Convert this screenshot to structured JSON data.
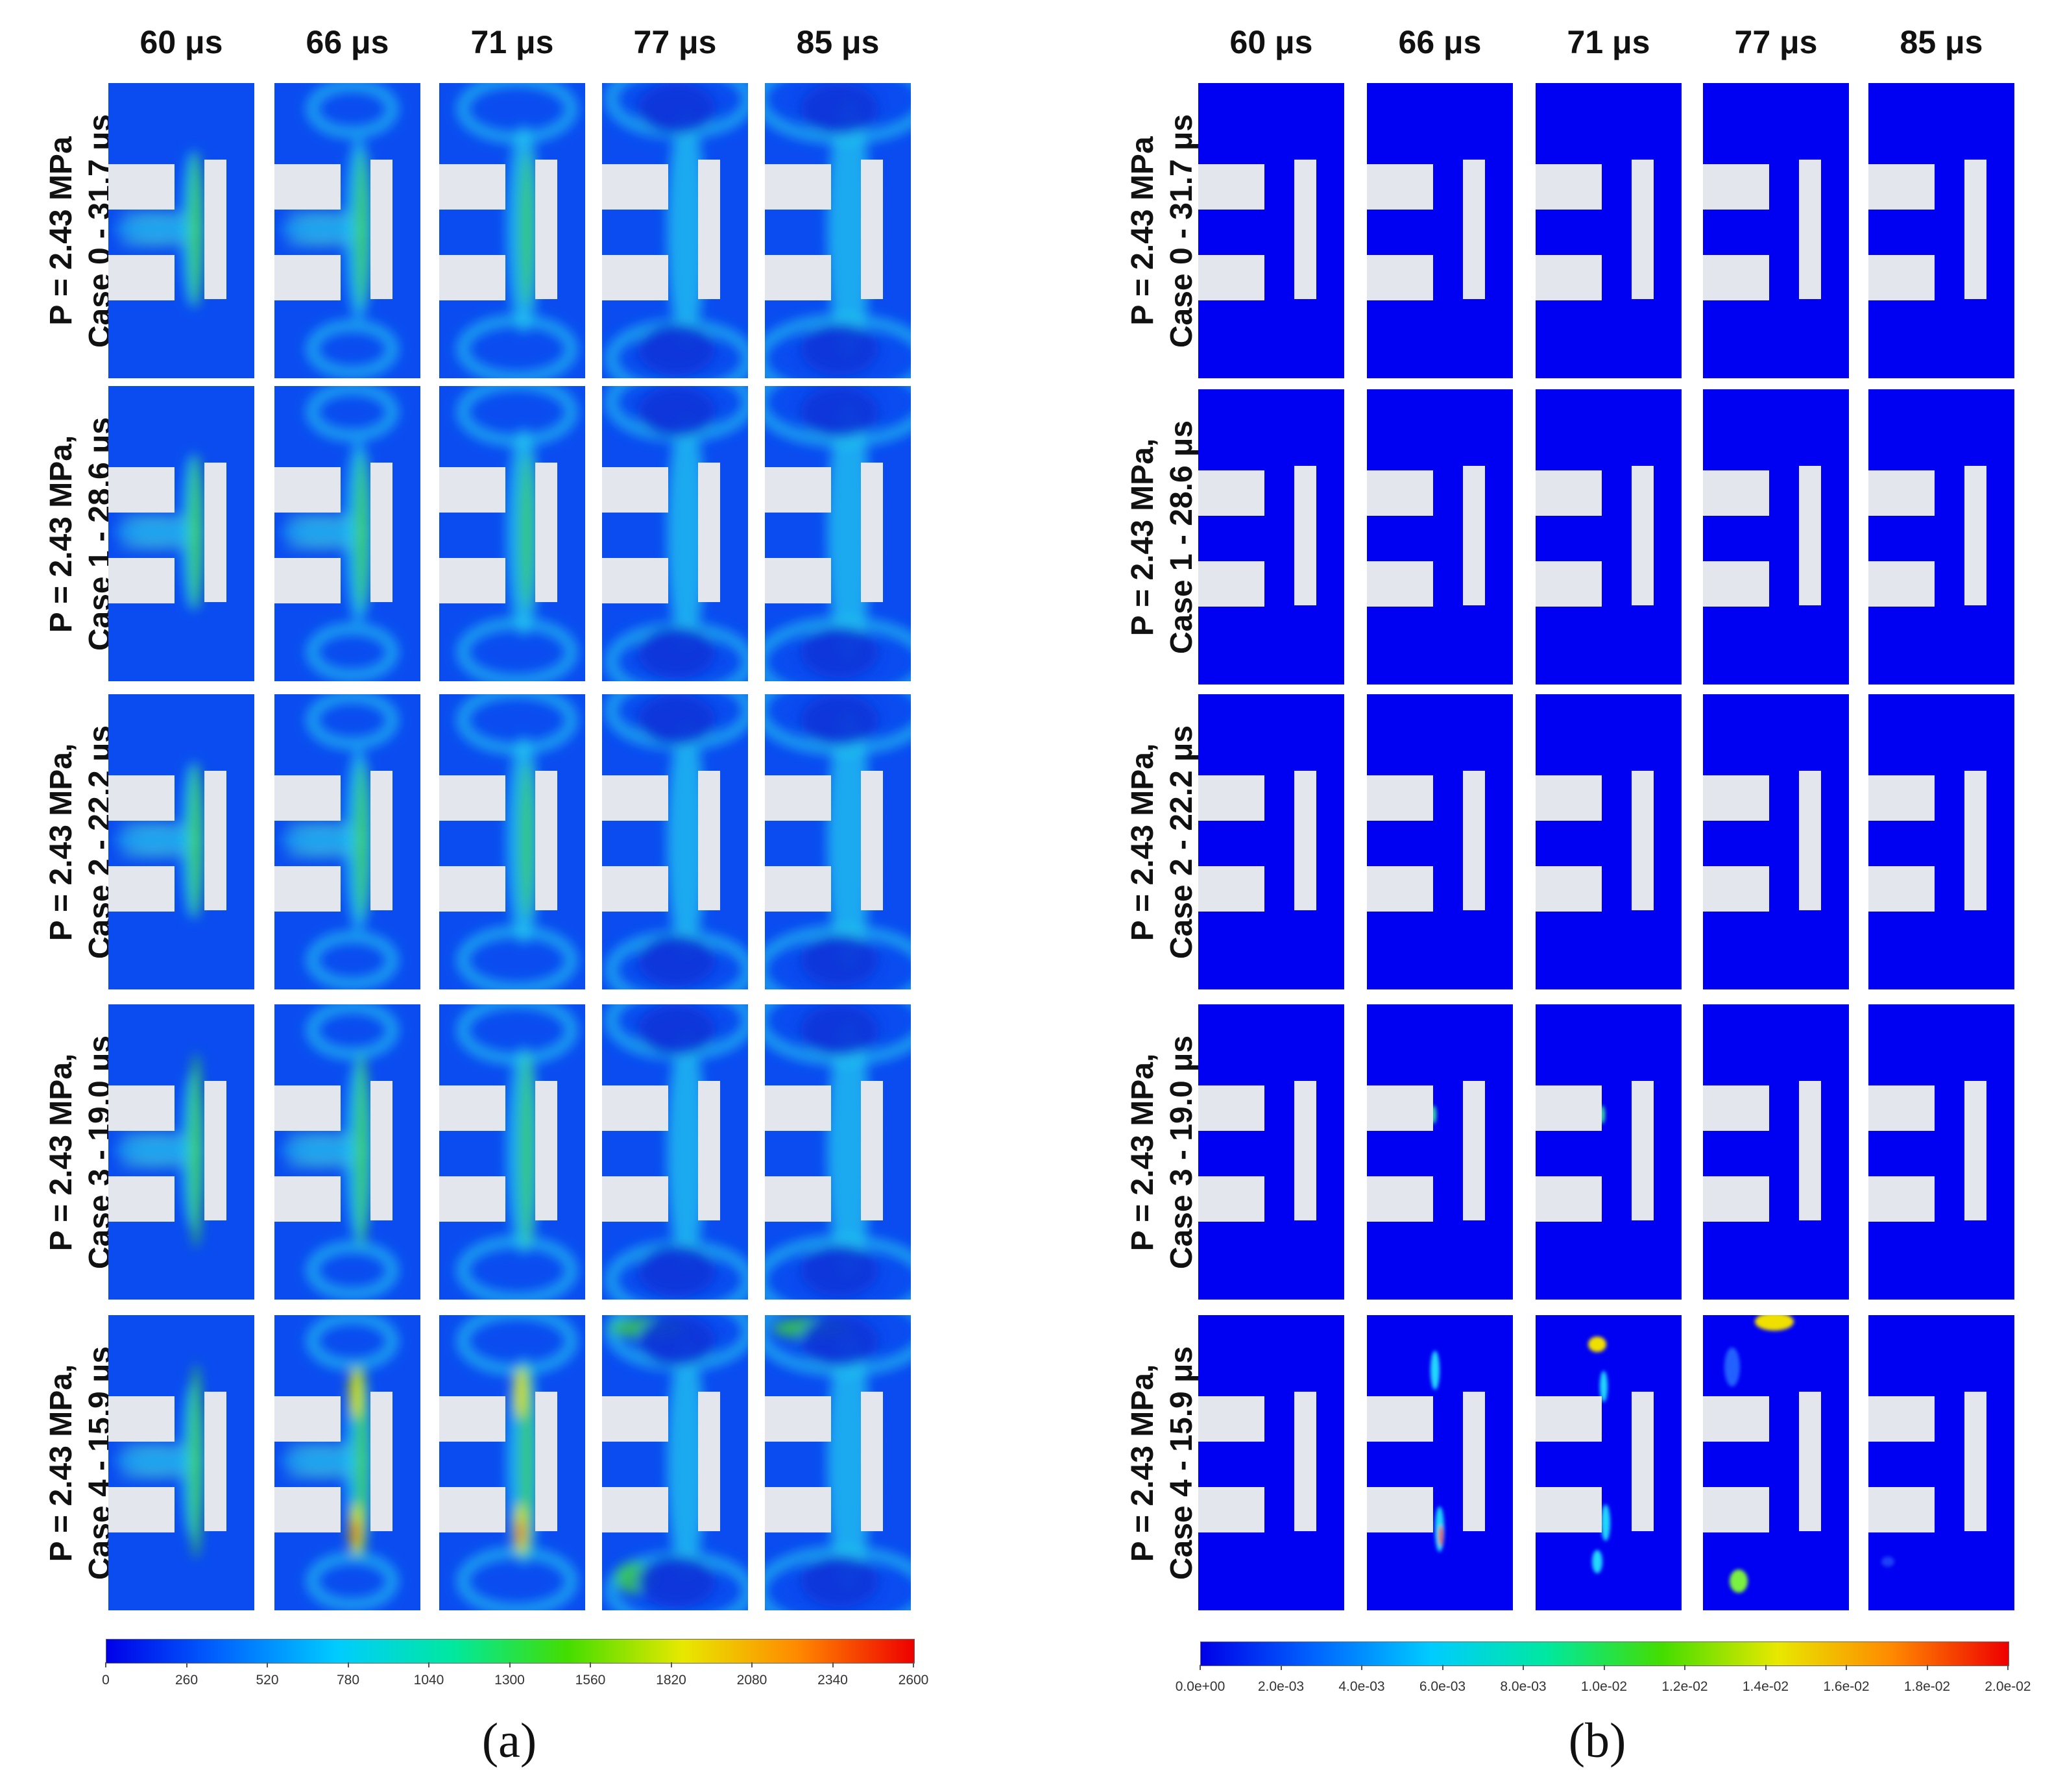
{
  "panels": [
    {
      "id": "a",
      "label": "(a)",
      "times": [
        "60 μs",
        "66 μs",
        "71 μs",
        "77 μs",
        "85 μs"
      ],
      "rows": [
        [
          "P = 2.43 MPa",
          "Case 0 - 31.7 μs"
        ],
        [
          "P = 2.43 MPa,",
          "Case 1 - 28.6 μs"
        ],
        [
          "P = 2.43 MPa,",
          "Case 2 - 22.2 μs"
        ],
        [
          "P = 2.43 MPa,",
          "Case 3 - 19.0 μs"
        ],
        [
          "P = 2.43 MPa,",
          "Case 4 - 15.9 μs"
        ]
      ],
      "colorbar": {
        "ticks": [
          "0",
          "260",
          "520",
          "780",
          "1040",
          "1300",
          "1560",
          "1820",
          "2080",
          "2340",
          "2600"
        ],
        "range": [
          0,
          2600
        ]
      }
    },
    {
      "id": "b",
      "label": "(b)",
      "times": [
        "60 μs",
        "66 μs",
        "71 μs",
        "77 μs",
        "85 μs"
      ],
      "rows": [
        [
          "P = 2.43 MPa",
          "Case 0 - 31.7 μs"
        ],
        [
          "P = 2.43 MPa,",
          "Case 1 - 28.6 μs"
        ],
        [
          "P = 2.43 MPa,",
          "Case 2 - 22.2 μs"
        ],
        [
          "P = 2.43 MPa,",
          "Case 3 - 19.0 μs"
        ],
        [
          "P = 2.43 MPa,",
          "Case 4 - 15.9 μs"
        ]
      ],
      "colorbar": {
        "ticks": [
          "0.0e+00",
          "2.0e-03",
          "4.0e-03",
          "6.0e-03",
          "8.0e-03",
          "1.0e-02",
          "1.2e-02",
          "1.4e-02",
          "1.6e-02",
          "1.8e-02",
          "2.0e-02"
        ],
        "range": [
          0,
          0.02
        ]
      }
    }
  ],
  "colormap": [
    "#0000e8",
    "#0066ff",
    "#00ccff",
    "#00e8a0",
    "#44dd00",
    "#e8e800",
    "#ff8800",
    "#ee0000"
  ],
  "colors": {
    "field_background_a": "#0a4cf0",
    "field_background_b": "#0000f2",
    "electrode": "#e4e6ee"
  }
}
